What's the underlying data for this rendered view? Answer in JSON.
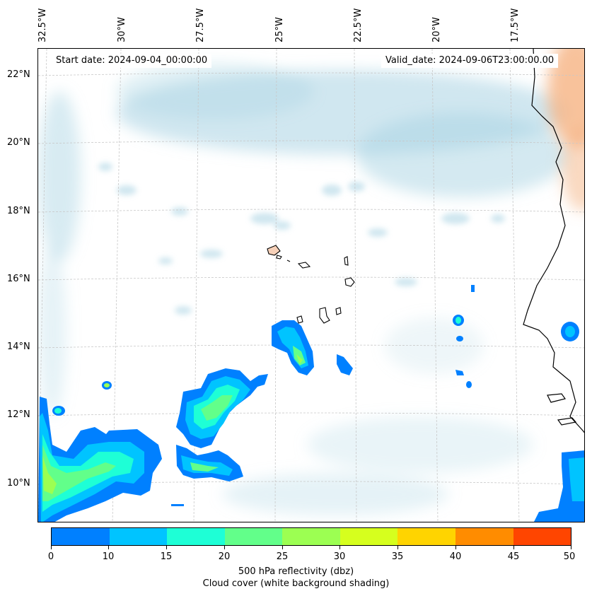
{
  "header": {
    "start_date": "Start date: 2024-09-04_00:00:00",
    "valid_date": "Valid_date: 2024-09-06T23:00:00.00"
  },
  "longitude_labels": [
    "32.5°W",
    "30°W",
    "27.5°W",
    "25°W",
    "22.5°W",
    "20°W",
    "17.5°W"
  ],
  "latitude_labels": [
    "22°N",
    "20°N",
    "18°N",
    "16°N",
    "14°N",
    "12°N",
    "10°N"
  ],
  "colorbar": {
    "ticks": [
      "0",
      "10",
      "15",
      "20",
      "25",
      "30",
      "35",
      "40",
      "45",
      "50"
    ],
    "colors": [
      "#0080ff",
      "#00c4ff",
      "#1effd6",
      "#62ff8a",
      "#9cff52",
      "#d6ff1e",
      "#ffd400",
      "#ff8c00",
      "#ff4500"
    ],
    "label_line1": "500 hPa reflectivity (dbz)",
    "label_line2": "Cloud cover (white background shading)"
  },
  "colors": {
    "cloud_cover": "#a9d3e3",
    "land_tint": "#f6b383",
    "coastline": "#000000",
    "gridline": "#c8c8c8"
  }
}
